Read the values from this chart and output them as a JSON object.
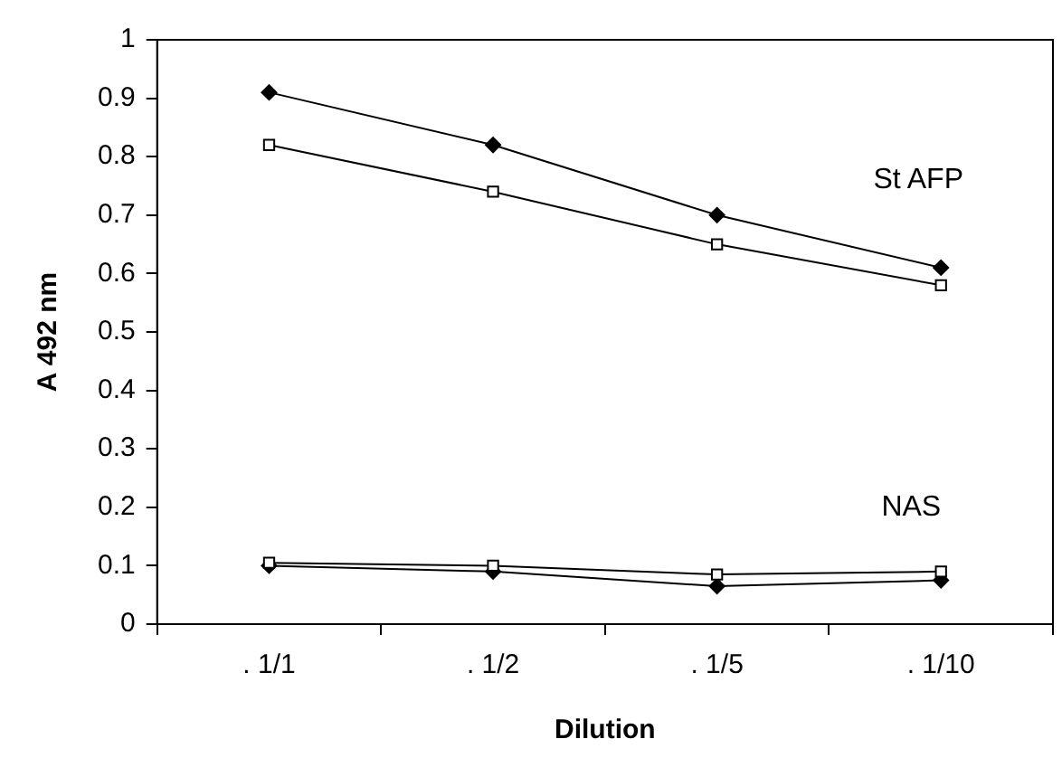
{
  "chart_data": {
    "type": "line",
    "xlabel": "Dilution",
    "ylabel": "A 492 nm",
    "categories": [
      ". 1/1",
      ". 1/2",
      ". 1/5",
      ". 1/10"
    ],
    "series": [
      {
        "color": "#000000",
        "marker": "diamond",
        "values": [
          0.91,
          0.82,
          0.7,
          0.61
        ]
      },
      {
        "color": "#000000",
        "marker": "square",
        "values": [
          0.82,
          0.74,
          0.65,
          0.58
        ]
      },
      {
        "color": "#000000",
        "marker": "square",
        "values": [
          0.105,
          0.1,
          0.085,
          0.09
        ]
      },
      {
        "color": "#000000",
        "marker": "diamond",
        "values": [
          0.1,
          0.09,
          0.065,
          0.075
        ]
      }
    ],
    "annotations": [
      "St AFP",
      "NAS"
    ],
    "ylim": [
      0,
      1
    ],
    "yticks": [
      0,
      0.1,
      0.2,
      0.3,
      0.4,
      0.5,
      0.6,
      0.7,
      0.8,
      0.9,
      1
    ],
    "grid": false,
    "legend": false,
    "line_style": "solid"
  }
}
